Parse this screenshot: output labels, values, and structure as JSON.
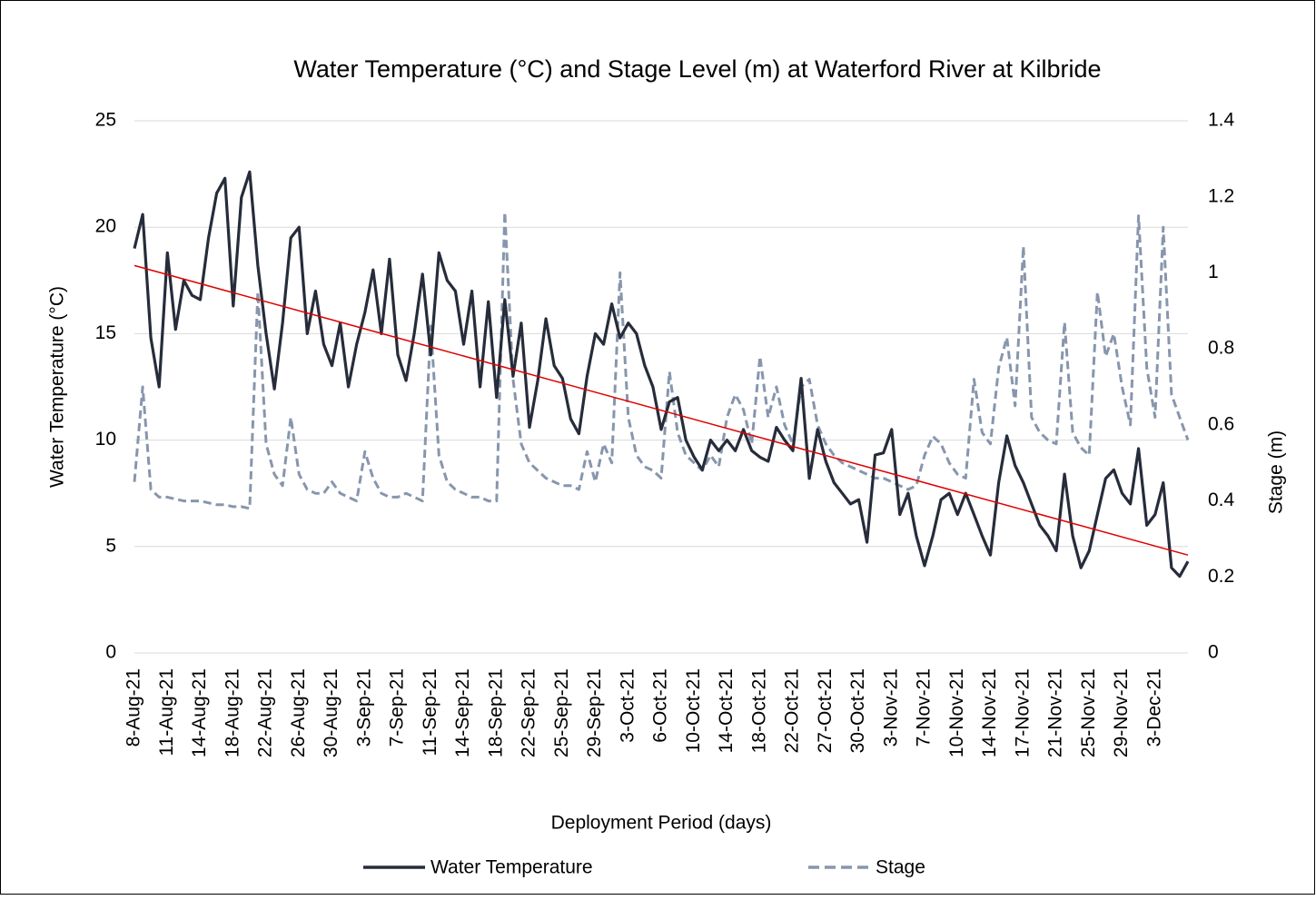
{
  "chart_data": {
    "type": "line",
    "title": "Water Temperature (°C) and Stage Level (m) at Waterford River at Kilbride",
    "x_label": "Deployment Period (days)",
    "y_label": "Water Temperature (°C)",
    "y2_label": "Stage (m)",
    "categories": [
      "8-Aug-21",
      null,
      null,
      null,
      "11-Aug-21",
      null,
      null,
      null,
      "14-Aug-21",
      null,
      null,
      null,
      "18-Aug-21",
      null,
      null,
      null,
      "22-Aug-21",
      null,
      null,
      null,
      "26-Aug-21",
      null,
      null,
      null,
      "30-Aug-21",
      null,
      null,
      null,
      "3-Sep-21",
      null,
      null,
      null,
      "7-Sep-21",
      null,
      null,
      null,
      "11-Sep-21",
      null,
      null,
      null,
      "14-Sep-21",
      null,
      null,
      null,
      "18-Sep-21",
      null,
      null,
      null,
      "22-Sep-21",
      null,
      null,
      null,
      "25-Sep-21",
      null,
      null,
      null,
      "29-Sep-21",
      null,
      null,
      null,
      "3-Oct-21",
      null,
      null,
      null,
      "6-Oct-21",
      null,
      null,
      null,
      "10-Oct-21",
      null,
      null,
      null,
      "14-Oct-21",
      null,
      null,
      null,
      "18-Oct-21",
      null,
      null,
      null,
      "22-Oct-21",
      null,
      null,
      null,
      "27-Oct-21",
      null,
      null,
      null,
      "30-Oct-21",
      null,
      null,
      null,
      "3-Nov-21",
      null,
      null,
      null,
      "7-Nov-21",
      null,
      null,
      null,
      "10-Nov-21",
      null,
      null,
      null,
      "14-Nov-21",
      null,
      null,
      null,
      "17-Nov-21",
      null,
      null,
      null,
      "21-Nov-21",
      null,
      null,
      null,
      "25-Nov-21",
      null,
      null,
      null,
      "29-Nov-21",
      null,
      null,
      null,
      "3-Dec-21",
      null,
      null,
      null,
      null
    ],
    "series": [
      {
        "name": "Water Temperature",
        "color": "#262c3a",
        "axis": "y",
        "dash": false,
        "values": [
          19,
          20.6,
          14.8,
          12.5,
          18.8,
          15.2,
          17.5,
          16.8,
          16.6,
          19.5,
          21.6,
          22.3,
          16.3,
          21.4,
          22.6,
          18.2,
          15.0,
          12.4,
          15.5,
          19.5,
          20,
          15,
          17,
          14.5,
          13.5,
          15.5,
          12.5,
          14.5,
          16,
          18,
          15,
          18.5,
          14,
          12.8,
          15,
          17.8,
          14,
          18.8,
          17.5,
          17,
          14.5,
          17,
          12.5,
          16.5,
          12,
          16.6,
          13,
          15.5,
          10.6,
          12.8,
          15.7,
          13.5,
          12.9,
          11,
          10.3,
          13,
          15,
          14.5,
          16.4,
          14.8,
          15.5,
          15,
          13.5,
          12.5,
          10.5,
          11.8,
          12,
          10,
          9.2,
          8.6,
          10,
          9.5,
          10,
          9.5,
          10.5,
          9.5,
          9.2,
          9,
          10.6,
          10,
          9.5,
          12.9,
          8.2,
          10.5,
          9,
          8,
          7.5,
          7,
          7.2,
          5.2,
          9.3,
          9.4,
          10.5,
          6.5,
          7.5,
          5.5,
          4.1,
          5.5,
          7.2,
          7.5,
          6.5,
          7.5,
          6.5,
          5.5,
          4.6,
          8,
          10.2,
          8.8,
          8,
          7,
          6,
          5.5,
          4.8,
          8.4,
          5.5,
          4,
          4.8,
          6.5,
          8.2,
          8.6,
          7.5,
          7,
          9.6,
          6,
          6.5,
          8,
          4,
          3.6,
          4.3
        ]
      },
      {
        "name": "Stage",
        "color": "#8796ad",
        "axis": "y2",
        "dash": true,
        "values": [
          0.45,
          0.7,
          0.43,
          0.41,
          0.41,
          0.405,
          0.4,
          0.4,
          0.4,
          0.395,
          0.39,
          0.39,
          0.385,
          0.385,
          0.38,
          0.95,
          0.55,
          0.47,
          0.44,
          0.62,
          0.47,
          0.43,
          0.42,
          0.42,
          0.45,
          0.42,
          0.41,
          0.4,
          0.53,
          0.46,
          0.42,
          0.41,
          0.41,
          0.42,
          0.41,
          0.4,
          0.86,
          0.52,
          0.45,
          0.43,
          0.42,
          0.41,
          0.41,
          0.4,
          0.4,
          1.16,
          0.72,
          0.55,
          0.5,
          0.48,
          0.46,
          0.45,
          0.44,
          0.44,
          0.43,
          0.53,
          0.45,
          0.55,
          0.5,
          1.0,
          0.62,
          0.52,
          0.49,
          0.48,
          0.46,
          0.74,
          0.58,
          0.52,
          0.5,
          0.48,
          0.52,
          0.49,
          0.62,
          0.68,
          0.64,
          0.55,
          0.78,
          0.62,
          0.7,
          0.6,
          0.55,
          0.7,
          0.72,
          0.6,
          0.55,
          0.52,
          0.5,
          0.49,
          0.48,
          0.47,
          0.46,
          0.46,
          0.45,
          0.44,
          0.43,
          0.44,
          0.52,
          0.57,
          0.55,
          0.5,
          0.47,
          0.46,
          0.72,
          0.58,
          0.55,
          0.75,
          0.83,
          0.65,
          1.07,
          0.62,
          0.58,
          0.56,
          0.55,
          0.87,
          0.58,
          0.54,
          0.52,
          0.95,
          0.78,
          0.84,
          0.7,
          0.6,
          1.15,
          0.75,
          0.62,
          1.12,
          0.68,
          0.62,
          0.56
        ]
      }
    ],
    "trendline": {
      "color": "#e00000",
      "values": [
        18.2,
        4.6
      ]
    },
    "ylim": [
      0,
      25
    ],
    "yticks": [
      0,
      5,
      10,
      15,
      20,
      25
    ],
    "y2lim": [
      0,
      1.4
    ],
    "y2ticks": [
      0,
      0.2,
      0.4,
      0.6,
      0.8,
      1,
      1.2,
      1.4
    ],
    "grid": true
  }
}
